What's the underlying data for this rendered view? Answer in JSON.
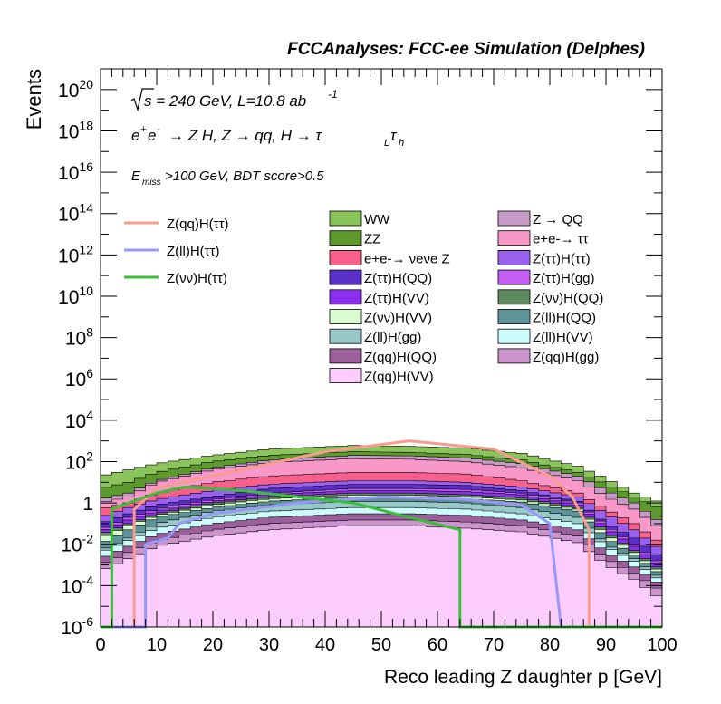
{
  "header": "FCCAnalyses: FCC-ee Simulation (Delphes)",
  "annotations": {
    "line1": "√s = 240 GeV, L=10.8 ab -1",
    "line2": "e+e- → Z H, Z → qq, H → τLτh",
    "line3": "Emiss>100 GeV, BDT score>0.5"
  },
  "chart_data": {
    "type": "area",
    "xlabel": "Reco leading Z daughter p [GeV]",
    "ylabel": "Events",
    "xlim": [
      0,
      100
    ],
    "ylim": [
      1e-06,
      1e+21
    ],
    "yscale": "log",
    "xticks": [
      "0",
      "10",
      "20",
      "30",
      "40",
      "50",
      "60",
      "70",
      "80",
      "90",
      "100"
    ],
    "yticks": [
      "10^-6",
      "10^-4",
      "10^-2",
      "1",
      "10^2",
      "10^4",
      "10^6",
      "10^8",
      "10^10",
      "10^12",
      "10^14",
      "10^16",
      "10^18",
      "10^20"
    ],
    "x_knots": [
      0,
      5,
      10,
      20,
      30,
      45,
      55,
      65,
      75,
      85,
      90,
      95,
      100
    ],
    "stack": [
      {
        "name": "WW",
        "color": "#8ac45a",
        "totals": [
          20,
          40,
          80,
          200,
          400,
          600,
          550,
          450,
          250,
          60,
          15,
          3,
          1
        ]
      },
      {
        "name": "ZZ",
        "color": "#5c9a2e",
        "totals": [
          5,
          10,
          30,
          100,
          200,
          300,
          280,
          220,
          120,
          30,
          8,
          2,
          0.5
        ]
      },
      {
        "name": "Z → QQ",
        "color": "#c89ac8",
        "totals": [
          1.5,
          3,
          12,
          50,
          120,
          200,
          190,
          150,
          80,
          20,
          4,
          1,
          0.1
        ]
      },
      {
        "name": "e+e-→ ττ",
        "color": "#f898c8",
        "totals": [
          1,
          2,
          10,
          40,
          90,
          140,
          130,
          100,
          50,
          12,
          2,
          0.5,
          0.05
        ]
      },
      {
        "name": "e+e-→ νeνe Z",
        "color": "#f8608c",
        "totals": [
          0.5,
          1,
          3,
          10,
          20,
          30,
          30,
          25,
          12,
          3,
          0.5,
          0.1,
          0.01
        ]
      },
      {
        "name": "Z(ττ)H(ττ)",
        "color": "#9a60ee",
        "totals": [
          0.2,
          0.6,
          1.5,
          4,
          8,
          12,
          12,
          10,
          6,
          2,
          0.3,
          0.05,
          0.005
        ]
      },
      {
        "name": "Z(ττ)H(QQ)",
        "color": "#5a30c8",
        "totals": [
          0.1,
          0.3,
          0.8,
          2,
          5,
          8,
          8,
          7,
          4,
          1.2,
          0.1,
          0.02,
          0.002
        ]
      },
      {
        "name": "Z(ττ)H(gg)",
        "color": "#c45ef5",
        "totals": [
          0.05,
          0.2,
          0.5,
          1.5,
          3,
          5,
          5,
          4.5,
          3,
          1,
          0.08,
          0.01,
          0.001
        ]
      },
      {
        "name": "Z(ττ)H(VV)",
        "color": "#8c2ef0",
        "totals": [
          0.04,
          0.15,
          0.4,
          1.2,
          2.5,
          4,
          4,
          3.5,
          2.5,
          0.8,
          0.06,
          0.008,
          0.0008
        ]
      },
      {
        "name": "Z(νν)H(QQ)",
        "color": "#5e8a5c",
        "totals": [
          0.03,
          0.1,
          0.3,
          1,
          2,
          3,
          3,
          2.5,
          1.8,
          0.6,
          0.04,
          0.005,
          0.0005
        ]
      },
      {
        "name": "Z(νν)H(VV)",
        "color": "#d8fcd0",
        "totals": [
          0.02,
          0.08,
          0.25,
          0.8,
          1.6,
          2.4,
          2.4,
          2,
          1.4,
          0.5,
          0.03,
          0.004,
          0.0004
        ]
      },
      {
        "name": "Z(ll)H(QQ)",
        "color": "#5e9498",
        "totals": [
          0.01,
          0.05,
          0.2,
          0.6,
          1.2,
          2,
          2,
          1.6,
          1.1,
          0.4,
          0.02,
          0.003,
          0.0003
        ]
      },
      {
        "name": "Z(ll)H(gg)",
        "color": "#98c8c8",
        "totals": [
          0.005,
          0.02,
          0.1,
          0.4,
          0.8,
          1.2,
          1.2,
          1,
          0.6,
          0.2,
          0.01,
          0.002,
          0.0002
        ]
      },
      {
        "name": "Z(ll)H(VV)",
        "color": "#ccfcfc",
        "totals": [
          0.004,
          0.015,
          0.06,
          0.2,
          0.4,
          0.6,
          0.6,
          0.5,
          0.3,
          0.1,
          0.008,
          0.0015,
          0.00015
        ]
      },
      {
        "name": "Z(qq)H(QQ)",
        "color": "#9c609c",
        "totals": [
          0.002,
          0.008,
          0.03,
          0.1,
          0.2,
          0.3,
          0.3,
          0.25,
          0.15,
          0.05,
          0.004,
          0.0008,
          0.0001
        ]
      },
      {
        "name": "Z(qq)H(gg)",
        "color": "#cc94cc",
        "totals": [
          0.001,
          0.004,
          0.015,
          0.05,
          0.1,
          0.15,
          0.15,
          0.12,
          0.08,
          0.025,
          0.002,
          0.0004,
          5e-05
        ]
      },
      {
        "name": "Z(qq)H(VV)",
        "color": "#fcccfc",
        "totals": [
          0.0005,
          0.002,
          0.008,
          0.025,
          0.05,
          0.08,
          0.08,
          0.06,
          0.04,
          0.012,
          0.001,
          0.0002,
          2e-05
        ]
      }
    ],
    "signals": [
      {
        "name": "Z(qq)H(ττ)",
        "color": "#f89c90",
        "points": [
          [
            0,
            1e-06
          ],
          [
            6,
            1e-06
          ],
          [
            6,
            0.5
          ],
          [
            10,
            5
          ],
          [
            20,
            20
          ],
          [
            40,
            300
          ],
          [
            55,
            1000
          ],
          [
            70,
            400
          ],
          [
            80,
            20
          ],
          [
            84,
            2
          ],
          [
            87,
            0.05
          ],
          [
            87,
            1e-06
          ],
          [
            100,
            1e-06
          ]
        ]
      },
      {
        "name": "Z(ll)H(ττ)",
        "color": "#9898f8",
        "points": [
          [
            0,
            1e-06
          ],
          [
            8,
            1e-06
          ],
          [
            8,
            0.01
          ],
          [
            12,
            0.02
          ],
          [
            14,
            0.1
          ],
          [
            20,
            0.3
          ],
          [
            35,
            1
          ],
          [
            50,
            2
          ],
          [
            65,
            1.5
          ],
          [
            75,
            0.8
          ],
          [
            80,
            0.1
          ],
          [
            82,
            1e-06
          ],
          [
            100,
            1e-06
          ]
        ]
      },
      {
        "name": "Z(νν)H(ττ)",
        "color": "#38c038",
        "points": [
          [
            0,
            1e-06
          ],
          [
            2,
            1e-06
          ],
          [
            2,
            0.5
          ],
          [
            5,
            1
          ],
          [
            10,
            3
          ],
          [
            15,
            6
          ],
          [
            25,
            4
          ],
          [
            35,
            2
          ],
          [
            45,
            1
          ],
          [
            55,
            0.2
          ],
          [
            64,
            0.05
          ],
          [
            64,
            1e-06
          ],
          [
            100,
            1e-06
          ]
        ]
      }
    ],
    "legend_order_col1": [
      "WW",
      "ZZ",
      "e+e-→ νeνe Z",
      "Z(ττ)H(QQ)",
      "Z(ττ)H(VV)",
      "Z(νν)H(VV)",
      "Z(ll)H(gg)",
      "Z(qq)H(QQ)",
      "Z(qq)H(VV)"
    ],
    "legend_order_col2": [
      "Z → QQ",
      "e+e-→ ττ",
      "Z(ττ)H(ττ)",
      "Z(ττ)H(gg)",
      "Z(νν)H(QQ)",
      "Z(ll)H(QQ)",
      "Z(ll)H(VV)",
      "Z(qq)H(gg)"
    ],
    "legend": "top-left",
    "grid": false
  }
}
